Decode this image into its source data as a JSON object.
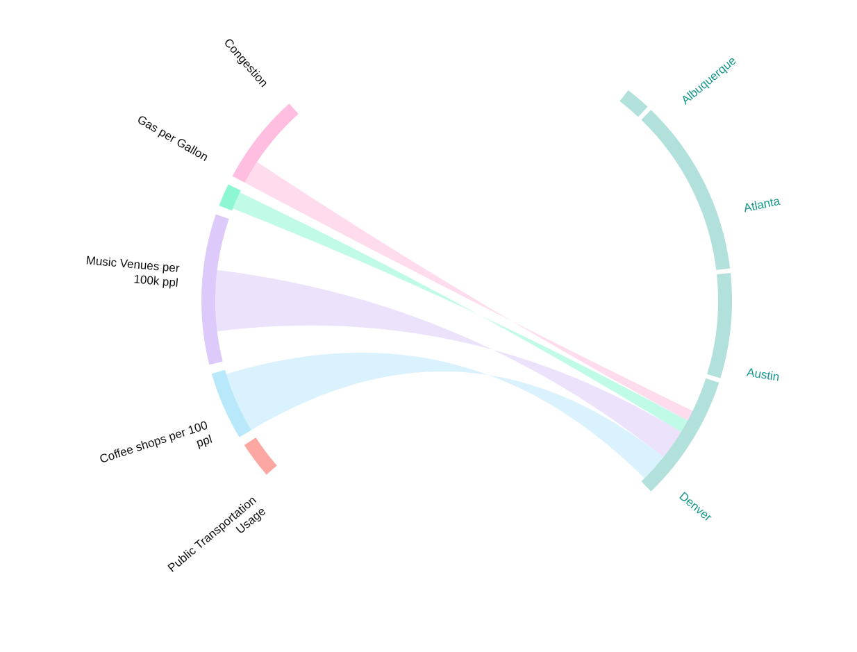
{
  "chart_data": {
    "type": "chord",
    "left_groups": [
      {
        "label": "Congestion",
        "lines": [
          "Congestion"
        ],
        "color": "#ffbde0"
      },
      {
        "label": "Gas per Gallon",
        "lines": [
          "Gas per Gallon"
        ],
        "color": "#8df7d4"
      },
      {
        "label": "Music Venues per 100k ppl",
        "lines": [
          "Music Venues per",
          "100k ppl"
        ],
        "color": "#dccbfa"
      },
      {
        "label": "Coffee shops per 100 ppl",
        "lines": [
          "Coffee shops per 100",
          "ppl"
        ],
        "color": "#b9e8fb"
      },
      {
        "label": "Public Transportation Usage",
        "lines": [
          "Public Transportation",
          "Usage"
        ],
        "color": "#fda7a3"
      }
    ],
    "right_groups": [
      {
        "label": "Albuquerque",
        "color": "#b2e0da"
      },
      {
        "label": "Atlanta",
        "color": "#b2e0da"
      },
      {
        "label": "Austin",
        "color": "#b2e0da"
      },
      {
        "label": "Denver",
        "color": "#b2e0da"
      }
    ],
    "links": [
      {
        "source": "Congestion",
        "target": "Denver"
      },
      {
        "source": "Gas per Gallon",
        "target": "Denver"
      },
      {
        "source": "Music Venues per 100k ppl",
        "target": "Denver"
      },
      {
        "source": "Coffee shops per 100 ppl",
        "target": "Denver"
      }
    ],
    "right_label_color": "#16968a",
    "left_label_color": "#111111"
  }
}
